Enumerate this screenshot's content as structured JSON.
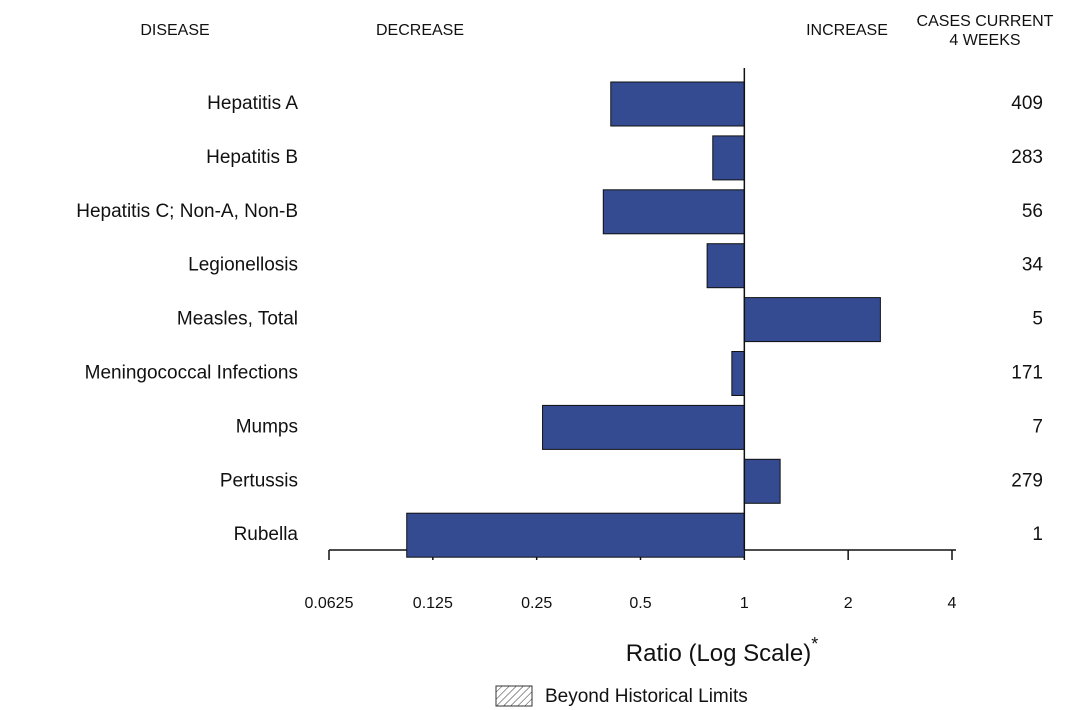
{
  "chart_data": {
    "type": "bar",
    "orientation": "horizontal",
    "headers": {
      "disease": "DISEASE",
      "decrease": "DECREASE",
      "increase": "INCREASE",
      "cases": [
        "CASES CURRENT",
        "4 WEEKS"
      ]
    },
    "categories": [
      "Hepatitis A",
      "Hepatitis B",
      "Hepatitis C; Non-A, Non-B",
      "Legionellosis",
      "Measles, Total",
      "Meningococcal Infections",
      "Mumps",
      "Pertussis",
      "Rubella"
    ],
    "values": [
      0.41,
      0.81,
      0.39,
      0.78,
      2.48,
      0.92,
      0.26,
      1.27,
      0.105
    ],
    "cases": [
      409,
      283,
      56,
      34,
      5,
      171,
      7,
      279,
      1
    ],
    "color": "#344b91",
    "baseline": 1,
    "xlim": [
      0.0625,
      4
    ],
    "xticks": [
      0.0625,
      0.125,
      0.25,
      0.5,
      1,
      2,
      4
    ],
    "log_x": true,
    "xlabel": "Ratio (Log Scale)",
    "xlabel_note": "*",
    "legend_label": "Beyond Historical Limits"
  }
}
